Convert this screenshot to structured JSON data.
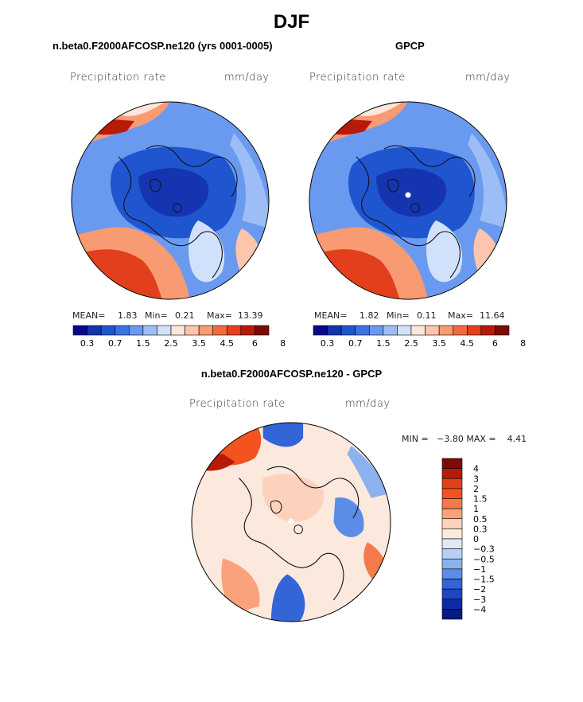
{
  "figure_title": "DJF",
  "panels": [
    {
      "title": "n.beta0.F2000AFCOSP.ne120 (yrs 0001-0005)",
      "variable_label": "Precipitation rate",
      "units_label": "mm/day",
      "mean_label": "MEAN=",
      "mean_value": "1.83",
      "min_label": "Min=",
      "min_value": "0.21",
      "max_label": "Max=",
      "max_value": "13.39"
    },
    {
      "title": "GPCP",
      "variable_label": "Precipitation rate",
      "units_label": "mm/day",
      "mean_label": "MEAN=",
      "mean_value": "1.82",
      "min_label": "Min=",
      "min_value": "0.11",
      "max_label": "Max=",
      "max_value": "11.64"
    },
    {
      "title": "n.beta0.F2000AFCOSP.ne120 - GPCP",
      "variable_label": "Precipitation rate",
      "units_label": "mm/day",
      "minmax_text": "MIN =   −3.80 MAX =    4.41"
    }
  ],
  "chart_data": [
    {
      "type": "heatmap",
      "projection": "north polar stereographic",
      "title": "n.beta0.F2000AFCOSP.ne120 (yrs 0001-0005)",
      "variable": "Precipitation rate",
      "units": "mm/day",
      "mean": 1.83,
      "min": 0.21,
      "max": 13.39,
      "colorbar_levels": [
        0.3,
        0.7,
        1.5,
        2.5,
        3.5,
        4.5,
        6,
        8
      ],
      "colorbar_tick_labels": [
        "0.3",
        "0.7",
        "1.5",
        "2.5",
        "3.5",
        "4.5",
        "6",
        "8"
      ]
    },
    {
      "type": "heatmap",
      "projection": "north polar stereographic",
      "title": "GPCP",
      "variable": "Precipitation rate",
      "units": "mm/day",
      "mean": 1.82,
      "min": 0.11,
      "max": 11.64,
      "colorbar_levels": [
        0.3,
        0.7,
        1.5,
        2.5,
        3.5,
        4.5,
        6,
        8
      ],
      "colorbar_tick_labels": [
        "0.3",
        "0.7",
        "1.5",
        "2.5",
        "3.5",
        "4.5",
        "6",
        "8"
      ]
    },
    {
      "type": "heatmap",
      "projection": "north polar stereographic",
      "title": "n.beta0.F2000AFCOSP.ne120 - GPCP",
      "variable": "Precipitation rate",
      "units": "mm/day",
      "min": -3.8,
      "max": 4.41,
      "colorbar_levels": [
        4,
        3,
        2,
        1.5,
        1,
        0.5,
        0.3,
        0,
        -0.3,
        -0.5,
        -1,
        -1.5,
        -2,
        -3,
        -4
      ],
      "colorbar_tick_labels": [
        "4",
        "3",
        "2",
        "1.5",
        "1",
        "0.5",
        "0.3",
        "0",
        "−0.3",
        "−0.5",
        "−1",
        "−1.5",
        "−2",
        "−3",
        "−4"
      ]
    }
  ],
  "colors": {
    "abs_scale": [
      "#08088c",
      "#1535b0",
      "#1f55cf",
      "#3a73e6",
      "#6a9af0",
      "#9dbdf6",
      "#d2e1fb",
      "#fde6dc",
      "#fcc5ac",
      "#f89a72",
      "#f26b3f",
      "#e33f1c",
      "#b81a0a",
      "#7e0a04"
    ],
    "diff_scale": [
      "#7e0a04",
      "#b81a0a",
      "#e33f1c",
      "#f2531f",
      "#f57a4a",
      "#f9a27c",
      "#fdd2bc",
      "#fbe9de",
      "#dfe9f8",
      "#b8cff3",
      "#8cb1ef",
      "#5b8ce8",
      "#3364d8",
      "#1f45c4",
      "#0e2aa6",
      "#061a80"
    ]
  }
}
